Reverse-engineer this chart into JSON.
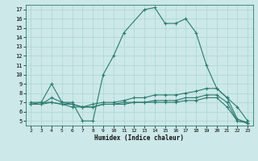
{
  "xlabel": "Humidex (Indice chaleur)",
  "x_ticks": [
    2,
    3,
    4,
    5,
    6,
    7,
    8,
    9,
    10,
    11,
    12,
    13,
    14,
    15,
    16,
    17,
    18,
    19,
    20,
    21,
    22,
    23
  ],
  "y_ticks": [
    5,
    6,
    7,
    8,
    9,
    10,
    11,
    12,
    13,
    14,
    15,
    16,
    17
  ],
  "ylim": [
    4.5,
    17.5
  ],
  "xlim": [
    1.5,
    23.5
  ],
  "bg_color": "#cce8e8",
  "grid_color": "#b0d8d8",
  "line_color": "#2a7a6e",
  "series1": [
    [
      2,
      7
    ],
    [
      3,
      7
    ],
    [
      4,
      9
    ],
    [
      5,
      7
    ],
    [
      6,
      7
    ],
    [
      7,
      5
    ],
    [
      8,
      5
    ],
    [
      9,
      10
    ],
    [
      10,
      12
    ],
    [
      11,
      14.5
    ],
    [
      13,
      17
    ],
    [
      14,
      17.2
    ],
    [
      15,
      15.5
    ],
    [
      16,
      15.5
    ],
    [
      17,
      16
    ],
    [
      18,
      14.5
    ],
    [
      19,
      11
    ],
    [
      20,
      8.5
    ],
    [
      21,
      7.5
    ],
    [
      22,
      6.5
    ],
    [
      23,
      5
    ]
  ],
  "series2": [
    [
      2,
      6.8
    ],
    [
      3,
      7
    ],
    [
      4,
      7
    ],
    [
      5,
      6.8
    ],
    [
      6,
      6.8
    ],
    [
      7,
      6.5
    ],
    [
      8,
      6.8
    ],
    [
      9,
      7
    ],
    [
      10,
      7
    ],
    [
      11,
      7.2
    ],
    [
      12,
      7.5
    ],
    [
      13,
      7.5
    ],
    [
      14,
      7.8
    ],
    [
      15,
      7.8
    ],
    [
      16,
      7.8
    ],
    [
      17,
      8
    ],
    [
      18,
      8.2
    ],
    [
      19,
      8.5
    ],
    [
      20,
      8.5
    ],
    [
      21,
      7.5
    ],
    [
      22,
      5.2
    ],
    [
      23,
      4.8
    ]
  ],
  "series3": [
    [
      2,
      6.8
    ],
    [
      3,
      6.8
    ],
    [
      4,
      7
    ],
    [
      5,
      6.8
    ],
    [
      6,
      6.5
    ],
    [
      7,
      6.5
    ],
    [
      8,
      6.5
    ],
    [
      9,
      6.8
    ],
    [
      10,
      6.8
    ],
    [
      11,
      7
    ],
    [
      12,
      7
    ],
    [
      13,
      7
    ],
    [
      14,
      7.2
    ],
    [
      15,
      7.2
    ],
    [
      16,
      7.2
    ],
    [
      17,
      7.5
    ],
    [
      18,
      7.5
    ],
    [
      19,
      7.8
    ],
    [
      20,
      7.8
    ],
    [
      21,
      7
    ],
    [
      22,
      5
    ],
    [
      23,
      4.8
    ]
  ],
  "series4": [
    [
      2,
      6.8
    ],
    [
      3,
      6.8
    ],
    [
      4,
      7.5
    ],
    [
      5,
      7
    ],
    [
      6,
      6.8
    ],
    [
      7,
      6.5
    ],
    [
      8,
      6.5
    ],
    [
      9,
      6.8
    ],
    [
      10,
      6.8
    ],
    [
      11,
      6.8
    ],
    [
      12,
      7
    ],
    [
      13,
      7
    ],
    [
      14,
      7
    ],
    [
      15,
      7
    ],
    [
      16,
      7
    ],
    [
      17,
      7.2
    ],
    [
      18,
      7.2
    ],
    [
      19,
      7.5
    ],
    [
      20,
      7.5
    ],
    [
      21,
      6.5
    ],
    [
      22,
      5
    ],
    [
      23,
      4.8
    ]
  ]
}
